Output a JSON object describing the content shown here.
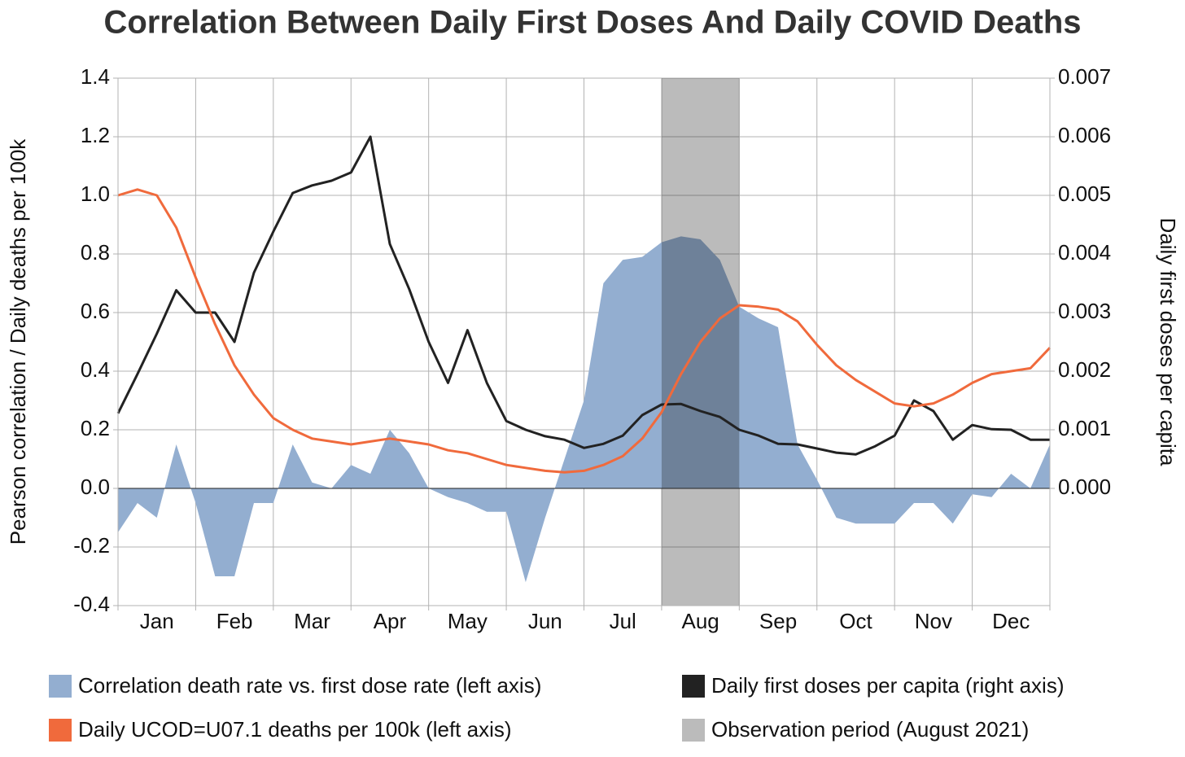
{
  "chart_data": {
    "type": "line",
    "title": "Correlation Between Daily First Doses And Daily COVID Deaths",
    "y_label": "Pearson correlation / Daily deaths per 100k",
    "y2_label": "Daily first doses per capita",
    "categories": [
      "Jan",
      "Feb",
      "Mar",
      "Apr",
      "May",
      "Jun",
      "Jul",
      "Aug",
      "Sep",
      "Oct",
      "Nov",
      "Dec"
    ],
    "xlim": [
      0,
      12
    ],
    "x": [
      0,
      0.25,
      0.5,
      0.75,
      1,
      1.25,
      1.5,
      1.75,
      2,
      2.25,
      2.5,
      2.75,
      3,
      3.25,
      3.5,
      3.75,
      4,
      4.25,
      4.5,
      4.75,
      5,
      5.25,
      5.5,
      5.75,
      6,
      6.25,
      6.5,
      6.75,
      7,
      7.25,
      7.5,
      7.75,
      8,
      8.25,
      8.5,
      8.75,
      9,
      9.25,
      9.5,
      9.75,
      10,
      10.25,
      10.5,
      10.75,
      11,
      11.25,
      11.5,
      11.75,
      12
    ],
    "ylim": [
      -0.4,
      1.4
    ],
    "yticks": [
      {
        "value": -0.4,
        "label": "-0.4"
      },
      {
        "value": -0.2,
        "label": "-0.2"
      },
      {
        "value": 0,
        "label": "0.0"
      },
      {
        "value": 0.2,
        "label": "0.2"
      },
      {
        "value": 0.4,
        "label": "0.4"
      },
      {
        "value": 0.6,
        "label": "0.6"
      },
      {
        "value": 0.8,
        "label": "0.8"
      },
      {
        "value": 1,
        "label": "1.0"
      },
      {
        "value": 1.2,
        "label": "1.2"
      },
      {
        "value": 1.4,
        "label": "1.4"
      }
    ],
    "y2lim": [
      -0.002,
      0.007
    ],
    "y2ticks": [
      {
        "value": 0,
        "label": "0.000"
      },
      {
        "value": 0.001,
        "label": "0.001"
      },
      {
        "value": 0.002,
        "label": "0.002"
      },
      {
        "value": 0.003,
        "label": "0.003"
      },
      {
        "value": 0.004,
        "label": "0.004"
      },
      {
        "value": 0.005,
        "label": "0.005"
      },
      {
        "value": 0.006,
        "label": "0.006"
      },
      {
        "value": 0.007,
        "label": "0.007"
      }
    ],
    "grid": true,
    "series": [
      {
        "name": "Correlation death rate vs. first dose rate (left axis)",
        "color": "#93aed0",
        "style": "area",
        "axis": "y",
        "values": [
          -0.15,
          -0.05,
          -0.1,
          0.15,
          -0.05,
          -0.3,
          -0.3,
          -0.05,
          -0.05,
          0.15,
          0.02,
          0,
          0.08,
          0.05,
          0.2,
          0.12,
          0,
          -0.03,
          -0.05,
          -0.08,
          -0.08,
          -0.32,
          -0.1,
          0.1,
          0.3,
          0.7,
          0.78,
          0.79,
          0.84,
          0.86,
          0.85,
          0.78,
          0.62,
          0.58,
          0.55,
          0.15,
          0.03,
          -0.1,
          -0.12,
          -0.12,
          -0.12,
          -0.05,
          -0.05,
          -0.12,
          -0.02,
          -0.03,
          0.05,
          0,
          0.15
        ]
      },
      {
        "name": "Daily first doses per capita (right axis)",
        "color": "#222222",
        "style": "line",
        "axis": "y2",
        "values": [
          0.00128,
          0.00195,
          0.00264,
          0.00338,
          0.003,
          0.003,
          0.0025,
          0.00368,
          0.00438,
          0.00504,
          0.00517,
          0.00525,
          0.00539,
          0.006,
          0.00417,
          0.0034,
          0.0025,
          0.0018,
          0.0027,
          0.0018,
          0.00115,
          0.001,
          0.00089,
          0.00083,
          0.00069,
          0.00076,
          0.0009,
          0.00125,
          0.00143,
          0.00144,
          0.00132,
          0.00122,
          0.001,
          0.0009,
          0.00076,
          0.00075,
          0.00068,
          0.00061,
          0.00058,
          0.00072,
          0.0009,
          0.0015,
          0.00132,
          0.00083,
          0.00108,
          0.00101,
          0.001,
          0.00083,
          0.00083
        ]
      },
      {
        "name": "Daily UCOD=U07.1 deaths per 100k (left axis)",
        "color": "#f06a3c",
        "style": "line",
        "axis": "y",
        "values": [
          1.0,
          1.02,
          1.0,
          0.89,
          0.72,
          0.56,
          0.42,
          0.32,
          0.24,
          0.2,
          0.17,
          0.16,
          0.15,
          0.16,
          0.17,
          0.16,
          0.15,
          0.13,
          0.12,
          0.1,
          0.08,
          0.07,
          0.06,
          0.055,
          0.06,
          0.08,
          0.11,
          0.17,
          0.26,
          0.39,
          0.5,
          0.58,
          0.625,
          0.62,
          0.61,
          0.57,
          0.49,
          0.42,
          0.37,
          0.33,
          0.29,
          0.28,
          0.29,
          0.32,
          0.36,
          0.39,
          0.4,
          0.41,
          0.48
        ]
      }
    ],
    "shade": {
      "name": "Observation period (August 2021)",
      "color": "#151515",
      "opacity": 0.29,
      "from": 7,
      "to": 8
    }
  }
}
